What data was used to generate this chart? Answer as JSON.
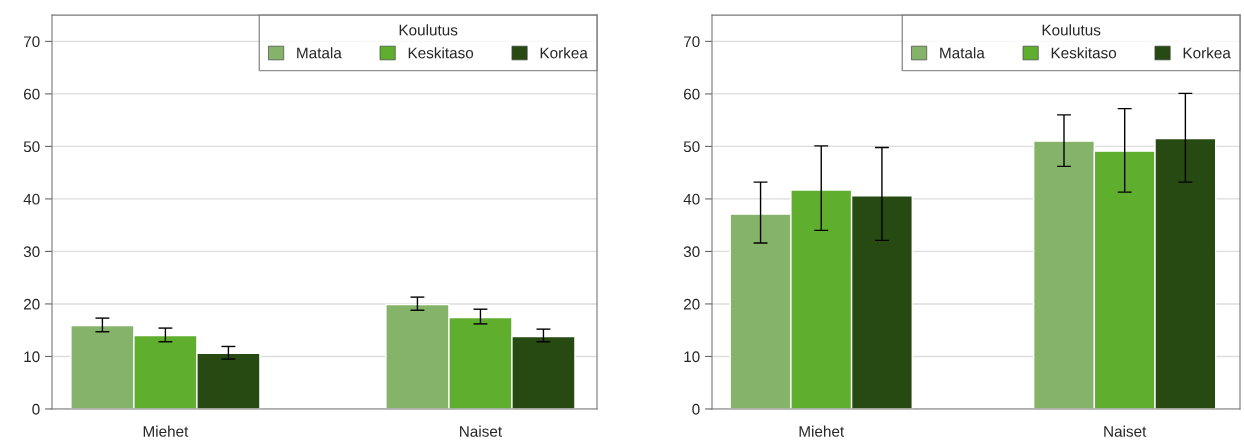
{
  "chart_data": [
    {
      "type": "bar",
      "categories": [
        "Miehet",
        "Naiset"
      ],
      "ylim": [
        0,
        75
      ],
      "yticks": [
        0,
        10,
        20,
        30,
        40,
        50,
        60,
        70
      ],
      "grid": "y",
      "legend": "top right",
      "legend_title": "Koulutus",
      "series": [
        {
          "name": "Matala",
          "color": "#86b36a",
          "values": [
            15.9,
            19.9
          ],
          "errors": [
            [
              14.7,
              17.3
            ],
            [
              18.8,
              21.3
            ]
          ]
        },
        {
          "name": "Keskitaso",
          "color": "#5fae2e",
          "values": [
            14.0,
            17.4
          ],
          "errors": [
            [
              12.8,
              15.4
            ],
            [
              16.2,
              19.0
            ]
          ]
        },
        {
          "name": "Korkea",
          "color": "#264a12",
          "values": [
            10.6,
            13.8
          ],
          "errors": [
            [
              9.5,
              11.9
            ],
            [
              12.8,
              15.2
            ]
          ]
        }
      ]
    },
    {
      "type": "bar",
      "categories": [
        "Miehet",
        "Naiset"
      ],
      "ylim": [
        0,
        75
      ],
      "yticks": [
        0,
        10,
        20,
        30,
        40,
        50,
        60,
        70
      ],
      "grid": "y",
      "legend": "top right",
      "legend_title": "Koulutus",
      "series": [
        {
          "name": "Matala",
          "color": "#86b36a",
          "values": [
            37.1,
            51.0
          ],
          "errors": [
            [
              31.6,
              43.2
            ],
            [
              46.2,
              56.0
            ]
          ]
        },
        {
          "name": "Keskitaso",
          "color": "#5fae2e",
          "values": [
            41.7,
            49.1
          ],
          "errors": [
            [
              34.0,
              50.1
            ],
            [
              41.3,
              57.2
            ]
          ]
        },
        {
          "name": "Korkea",
          "color": "#264a12",
          "values": [
            40.6,
            51.5
          ],
          "errors": [
            [
              32.1,
              49.8
            ],
            [
              43.2,
              60.1
            ]
          ]
        }
      ]
    }
  ]
}
